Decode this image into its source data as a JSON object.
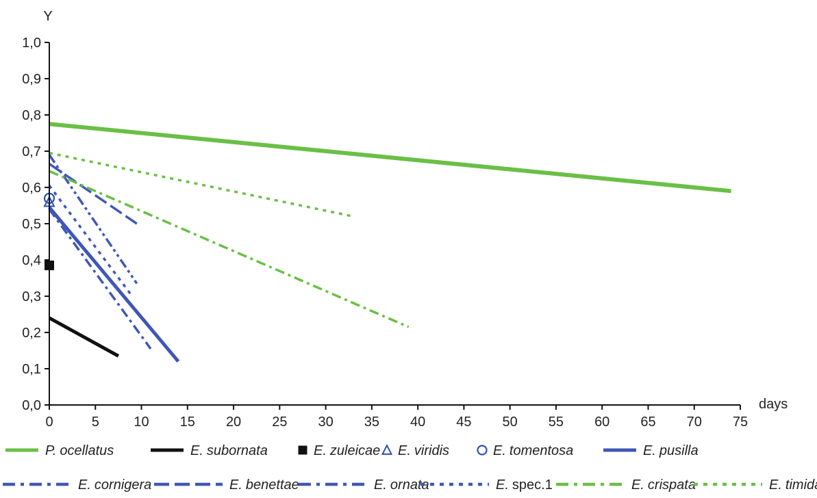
{
  "chart_data": {
    "type": "line",
    "ylabel": "Y",
    "xlabel": "days",
    "xlim": [
      0,
      75
    ],
    "ylim": [
      0.0,
      1.0
    ],
    "xticks": [
      0,
      5,
      10,
      15,
      20,
      25,
      30,
      35,
      40,
      45,
      50,
      55,
      60,
      65,
      70,
      75
    ],
    "yticks": [
      "0,0",
      "0,1",
      "0,2",
      "0,3",
      "0,4",
      "0,5",
      "0,6",
      "0,7",
      "0,8",
      "0,9",
      "1,0"
    ],
    "grid": false,
    "legend_position": "bottom",
    "series": [
      {
        "name": "P. ocellatus",
        "genus": "P.",
        "species": "ocellatus",
        "style": "solid",
        "color": "#6abf45",
        "points": [
          [
            0,
            0.775
          ],
          [
            74,
            0.59
          ]
        ]
      },
      {
        "name": "E. subornata",
        "genus": "E.",
        "species": "subornata",
        "style": "solid",
        "color": "#111111",
        "points": [
          [
            0,
            0.24
          ],
          [
            7.5,
            0.135
          ]
        ]
      },
      {
        "name": "E. zuleicae",
        "genus": "E.",
        "species": "zuleicae",
        "style": "marker-square",
        "color": "#111111",
        "points": [
          [
            0,
            0.385
          ]
        ]
      },
      {
        "name": "E. viridis",
        "genus": "E.",
        "species": "viridis",
        "style": "marker-triangle",
        "color": "#2e4fb0",
        "points": [
          [
            0,
            0.56
          ]
        ]
      },
      {
        "name": "E. tomentosa",
        "genus": "E.",
        "species": "tomentosa",
        "style": "marker-circle",
        "color": "#2e4fb0",
        "points": [
          [
            0,
            0.57
          ]
        ]
      },
      {
        "name": "E. pusilla",
        "genus": "E.",
        "species": "pusilla",
        "style": "solid",
        "color": "#3f57b5",
        "points": [
          [
            0,
            0.545
          ],
          [
            14,
            0.12
          ]
        ]
      },
      {
        "name": "E. cornigera",
        "genus": "E.",
        "species": "cornigera",
        "style": "dash-dot",
        "color": "#3f57b5",
        "points": [
          [
            0,
            0.54
          ],
          [
            11,
            0.155
          ]
        ]
      },
      {
        "name": "E. benettae",
        "genus": "E.",
        "species": "benettae",
        "style": "long-dash",
        "color": "#3f57b5",
        "points": [
          [
            0,
            0.665
          ],
          [
            9.5,
            0.5
          ]
        ]
      },
      {
        "name": "E. ornata",
        "genus": "E.",
        "species": "ornata",
        "style": "dash-dot-dot",
        "color": "#3f57b5",
        "points": [
          [
            0,
            0.69
          ],
          [
            9.5,
            0.335
          ]
        ]
      },
      {
        "name": "E. spec.1",
        "genus": "E.",
        "species": "spec.1",
        "style": "dotted",
        "color": "#3f57b5",
        "points": [
          [
            0,
            0.605
          ],
          [
            9,
            0.3
          ]
        ]
      },
      {
        "name": "E. crispata",
        "genus": "E.",
        "species": "crispata",
        "style": "dash-dot",
        "color": "#6abf45",
        "points": [
          [
            0,
            0.645
          ],
          [
            39,
            0.215
          ]
        ]
      },
      {
        "name": "E. timida",
        "genus": "E.",
        "species": "timida",
        "style": "dotted",
        "color": "#6abf45",
        "points": [
          [
            0,
            0.695
          ],
          [
            33,
            0.52
          ]
        ]
      }
    ]
  }
}
